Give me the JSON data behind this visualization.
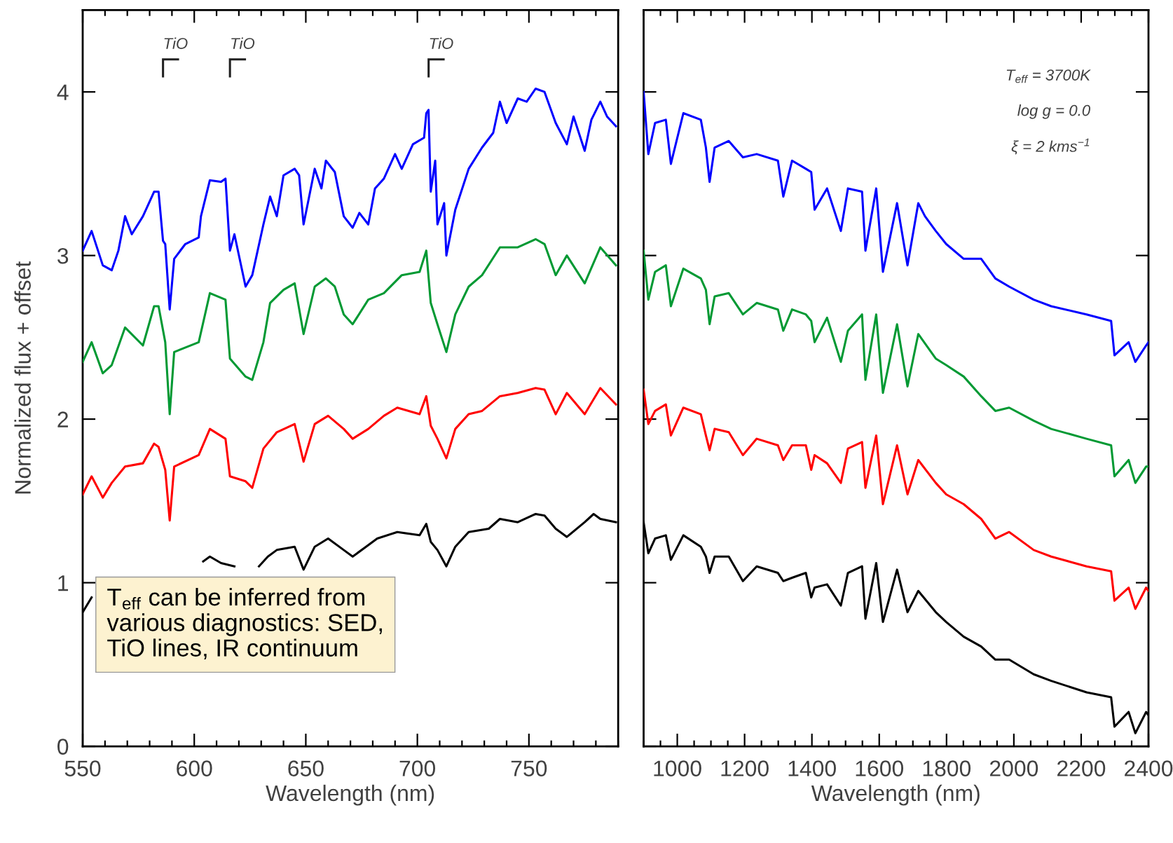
{
  "chart_data": [
    {
      "type": "line",
      "xlabel": "Wavelength (nm)",
      "ylabel": "Normalized flux + offset",
      "xlim": [
        550,
        790
      ],
      "xticks": [
        550,
        600,
        650,
        700,
        750
      ],
      "ylim": [
        0,
        4.5
      ],
      "yticks": [
        0,
        1,
        2,
        3,
        4
      ],
      "annotations": [
        "TiO",
        "TiO",
        "TiO",
        "T$_{eff}$ can be inferred from\nvarious diagnostics: SED,\nTiO lines, IR continuum"
      ],
      "series": [
        {
          "color": "#000000",
          "x": [
            550,
            554,
            575,
            604,
            607,
            612,
            618,
            622,
            629,
            633,
            637,
            645,
            649,
            654,
            660,
            667,
            671,
            677,
            682,
            691,
            701,
            704,
            706,
            709,
            713,
            717,
            723,
            732,
            737,
            745,
            753,
            757,
            762,
            767,
            775,
            779,
            782,
            789
          ],
          "values": [
            0.82,
            0.91,
            null,
            1.13,
            1.16,
            1.12,
            1.1,
            null,
            1.1,
            1.16,
            1.2,
            1.22,
            1.08,
            1.22,
            1.27,
            1.2,
            1.16,
            1.22,
            1.27,
            1.31,
            1.29,
            1.36,
            1.25,
            1.2,
            1.1,
            1.22,
            1.31,
            1.33,
            1.39,
            1.37,
            1.42,
            1.41,
            1.33,
            1.28,
            1.37,
            1.42,
            1.39,
            1.37
          ]
        },
        {
          "color": "#ff0000",
          "x": [
            550,
            554,
            559,
            563,
            569,
            577,
            582,
            584,
            587,
            589,
            591,
            602,
            607,
            614,
            616,
            623,
            626,
            631,
            637,
            645,
            649,
            654,
            660,
            667,
            671,
            678,
            685,
            691,
            701,
            704,
            706,
            709,
            713,
            717,
            723,
            729,
            737,
            745,
            753,
            757,
            762,
            767,
            775,
            782,
            789
          ],
          "values": [
            1.54,
            1.65,
            1.52,
            1.61,
            1.71,
            1.73,
            1.85,
            1.83,
            1.69,
            1.38,
            1.71,
            1.78,
            1.94,
            1.88,
            1.65,
            1.62,
            1.58,
            1.82,
            1.92,
            1.97,
            1.74,
            1.97,
            2.02,
            1.94,
            1.88,
            1.94,
            2.02,
            2.07,
            2.03,
            2.14,
            1.96,
            1.88,
            1.76,
            1.94,
            2.03,
            2.05,
            2.14,
            2.16,
            2.19,
            2.18,
            2.03,
            2.16,
            2.03,
            2.19,
            2.09
          ]
        },
        {
          "color": "#009933",
          "x": [
            550,
            554,
            559,
            563,
            569,
            577,
            582,
            584,
            587,
            589,
            591,
            602,
            607,
            614,
            616,
            623,
            626,
            631,
            634,
            640,
            645,
            649,
            654,
            659,
            663,
            667,
            671,
            678,
            685,
            693,
            701,
            704,
            706,
            709,
            713,
            717,
            723,
            729,
            737,
            745,
            753,
            757,
            762,
            767,
            775,
            782,
            789
          ],
          "values": [
            2.35,
            2.47,
            2.28,
            2.33,
            2.56,
            2.45,
            2.69,
            2.69,
            2.47,
            2.03,
            2.41,
            2.47,
            2.77,
            2.73,
            2.37,
            2.26,
            2.24,
            2.47,
            2.71,
            2.79,
            2.83,
            2.52,
            2.81,
            2.86,
            2.81,
            2.64,
            2.58,
            2.73,
            2.77,
            2.88,
            2.9,
            3.03,
            2.71,
            2.58,
            2.41,
            2.64,
            2.81,
            2.88,
            3.05,
            3.05,
            3.1,
            3.07,
            2.88,
            3.0,
            2.83,
            3.05,
            2.94
          ]
        },
        {
          "color": "#0000ff",
          "x": [
            550,
            554,
            559,
            563,
            566,
            569,
            572,
            577,
            582,
            584,
            586,
            587,
            589,
            591,
            596,
            602,
            603,
            607,
            612,
            614,
            616,
            618,
            623,
            626,
            631,
            634,
            637,
            640,
            645,
            647,
            649,
            654,
            657,
            659,
            663,
            667,
            671,
            674,
            678,
            681,
            685,
            690,
            693,
            698,
            703,
            704,
            705,
            706,
            708,
            709,
            712,
            713,
            717,
            723,
            729,
            734,
            737,
            740,
            745,
            749,
            753,
            757,
            762,
            767,
            770,
            775,
            778,
            782,
            785,
            789
          ],
          "values": [
            3.03,
            3.15,
            2.94,
            2.91,
            3.03,
            3.24,
            3.13,
            3.24,
            3.39,
            3.39,
            3.09,
            3.07,
            2.67,
            2.98,
            3.07,
            3.11,
            3.24,
            3.46,
            3.45,
            3.47,
            3.03,
            3.13,
            2.81,
            2.88,
            3.19,
            3.36,
            3.24,
            3.49,
            3.53,
            3.49,
            3.19,
            3.53,
            3.41,
            3.58,
            3.51,
            3.24,
            3.17,
            3.26,
            3.19,
            3.41,
            3.47,
            3.62,
            3.53,
            3.68,
            3.72,
            3.87,
            3.89,
            3.39,
            3.58,
            3.19,
            3.32,
            3.0,
            3.28,
            3.53,
            3.66,
            3.75,
            3.94,
            3.81,
            3.96,
            3.94,
            4.02,
            4.0,
            3.81,
            3.68,
            3.85,
            3.64,
            3.83,
            3.94,
            3.85,
            3.79
          ]
        }
      ]
    },
    {
      "type": "line",
      "xlabel": "Wavelength (nm)",
      "tick_labels": "x",
      "xlim": [
        900,
        2400
      ],
      "xticks": [
        1000,
        1200,
        1400,
        1600,
        1800,
        2000,
        2200,
        2400
      ],
      "ylim": [
        0,
        4.5
      ],
      "yticks": [
        0,
        1,
        2,
        3,
        4
      ],
      "annotations": [
        "T$_{eff}$ = 3700K",
        "log g = 0.0",
        "ξ = 2 kms$^{−1}$"
      ],
      "series": [
        {
          "color": "#000000",
          "x": [
            900,
            914,
            934,
            966,
            981,
            1018,
            1070,
            1085,
            1096,
            1111,
            1153,
            1195,
            1236,
            1299,
            1315,
            1341,
            1382,
            1398,
            1408,
            1445,
            1486,
            1507,
            1549,
            1559,
            1591,
            1611,
            1653,
            1684,
            1716,
            1768,
            1799,
            1851,
            1903,
            1945,
            1986,
            2059,
            2111,
            2216,
            2289,
            2299,
            2341,
            2361,
            2393,
            2400
          ],
          "values": [
            1.37,
            1.18,
            1.27,
            1.29,
            1.14,
            1.29,
            1.22,
            1.16,
            1.06,
            1.16,
            1.16,
            1.01,
            1.1,
            1.06,
            1.01,
            1.03,
            1.06,
            0.91,
            0.97,
            0.99,
            0.86,
            1.06,
            1.1,
            0.78,
            1.12,
            0.76,
            1.08,
            0.82,
            0.95,
            0.82,
            0.76,
            0.67,
            0.61,
            0.53,
            0.53,
            0.44,
            0.4,
            0.33,
            0.3,
            0.12,
            0.21,
            0.08,
            0.21,
            0.19
          ]
        },
        {
          "color": "#ff0000",
          "x": [
            900,
            914,
            934,
            966,
            981,
            1018,
            1070,
            1085,
            1096,
            1111,
            1153,
            1195,
            1236,
            1299,
            1315,
            1341,
            1382,
            1398,
            1408,
            1445,
            1486,
            1507,
            1549,
            1559,
            1591,
            1611,
            1653,
            1684,
            1716,
            1768,
            1799,
            1851,
            1903,
            1945,
            1986,
            2059,
            2111,
            2216,
            2289,
            2299,
            2341,
            2361,
            2393,
            2400
          ],
          "values": [
            2.18,
            1.97,
            2.05,
            2.09,
            1.9,
            2.07,
            2.03,
            1.9,
            1.81,
            1.94,
            1.92,
            1.78,
            1.88,
            1.84,
            1.75,
            1.84,
            1.84,
            1.69,
            1.78,
            1.73,
            1.61,
            1.82,
            1.86,
            1.58,
            1.9,
            1.48,
            1.84,
            1.54,
            1.75,
            1.61,
            1.54,
            1.48,
            1.39,
            1.27,
            1.31,
            1.2,
            1.16,
            1.1,
            1.07,
            0.89,
            0.97,
            0.84,
            0.97,
            0.95
          ]
        },
        {
          "color": "#009933",
          "x": [
            900,
            914,
            934,
            966,
            981,
            1018,
            1070,
            1085,
            1096,
            1111,
            1153,
            1195,
            1236,
            1299,
            1315,
            1341,
            1382,
            1398,
            1408,
            1445,
            1486,
            1507,
            1549,
            1559,
            1591,
            1611,
            1653,
            1684,
            1716,
            1768,
            1799,
            1851,
            1903,
            1945,
            1986,
            2059,
            2111,
            2216,
            2289,
            2299,
            2341,
            2361,
            2393,
            2400
          ],
          "values": [
            3.03,
            2.73,
            2.9,
            2.94,
            2.69,
            2.92,
            2.86,
            2.79,
            2.58,
            2.75,
            2.77,
            2.64,
            2.71,
            2.67,
            2.54,
            2.67,
            2.64,
            2.6,
            2.47,
            2.62,
            2.35,
            2.54,
            2.64,
            2.24,
            2.64,
            2.16,
            2.58,
            2.2,
            2.52,
            2.37,
            2.33,
            2.26,
            2.14,
            2.05,
            2.07,
            1.99,
            1.94,
            1.88,
            1.84,
            1.65,
            1.75,
            1.61,
            1.71,
            1.71
          ]
        },
        {
          "color": "#0000ff",
          "x": [
            900,
            914,
            934,
            966,
            981,
            1018,
            1070,
            1085,
            1096,
            1111,
            1153,
            1195,
            1236,
            1299,
            1315,
            1341,
            1382,
            1398,
            1408,
            1445,
            1486,
            1507,
            1549,
            1559,
            1591,
            1611,
            1653,
            1684,
            1716,
            1736,
            1768,
            1799,
            1851,
            1903,
            1945,
            1986,
            2059,
            2111,
            2216,
            2289,
            2299,
            2341,
            2361,
            2393,
            2400
          ],
          "values": [
            4.0,
            3.62,
            3.81,
            3.83,
            3.56,
            3.87,
            3.83,
            3.66,
            3.45,
            3.66,
            3.7,
            3.6,
            3.62,
            3.58,
            3.36,
            3.58,
            3.53,
            3.51,
            3.28,
            3.41,
            3.15,
            3.41,
            3.39,
            3.03,
            3.41,
            2.9,
            3.32,
            2.94,
            3.32,
            3.24,
            3.15,
            3.07,
            2.98,
            2.98,
            2.86,
            2.81,
            2.73,
            2.69,
            2.64,
            2.6,
            2.39,
            2.47,
            2.35,
            2.45,
            2.47
          ]
        }
      ]
    }
  ]
}
